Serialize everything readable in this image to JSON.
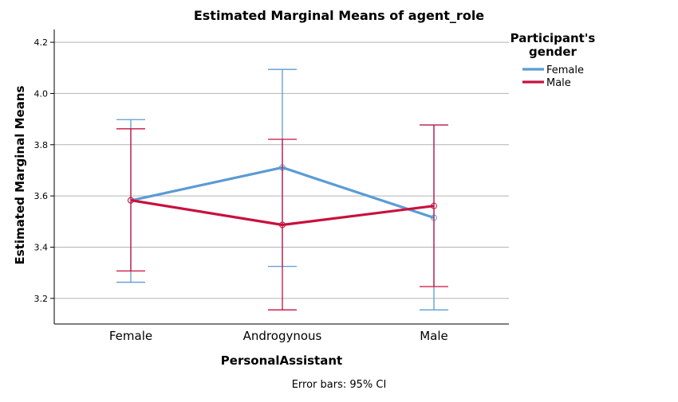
{
  "chart_data": {
    "type": "line",
    "title": "Estimated Marginal Means of agent_role",
    "xlabel": "PersonalAssistant",
    "ylabel": "Estimated Marginal Means",
    "categories": [
      "Female",
      "Androgynous",
      "Male"
    ],
    "ylim": [
      3.1,
      4.25
    ],
    "yticks": [
      "3.2",
      "3.4",
      "3.6",
      "3.8",
      "4.0",
      "4.2"
    ],
    "grid": true,
    "legend": {
      "title_line1": "Participant's",
      "title_line2": "gender",
      "placement": "right"
    },
    "series": [
      {
        "name": "Female",
        "color": "#5b9bd5",
        "values": [
          3.582,
          3.711,
          3.515
        ],
        "ci_lower": [
          3.263,
          3.325,
          3.155
        ],
        "ci_upper": [
          3.898,
          4.094,
          3.877
        ]
      },
      {
        "name": "Male",
        "color": "#c8103e",
        "values": [
          3.583,
          3.487,
          3.561
        ],
        "ci_lower": [
          3.307,
          3.155,
          3.246
        ],
        "ci_upper": [
          3.862,
          3.821,
          3.877
        ]
      }
    ],
    "footnote": "Error bars: 95% CI"
  }
}
